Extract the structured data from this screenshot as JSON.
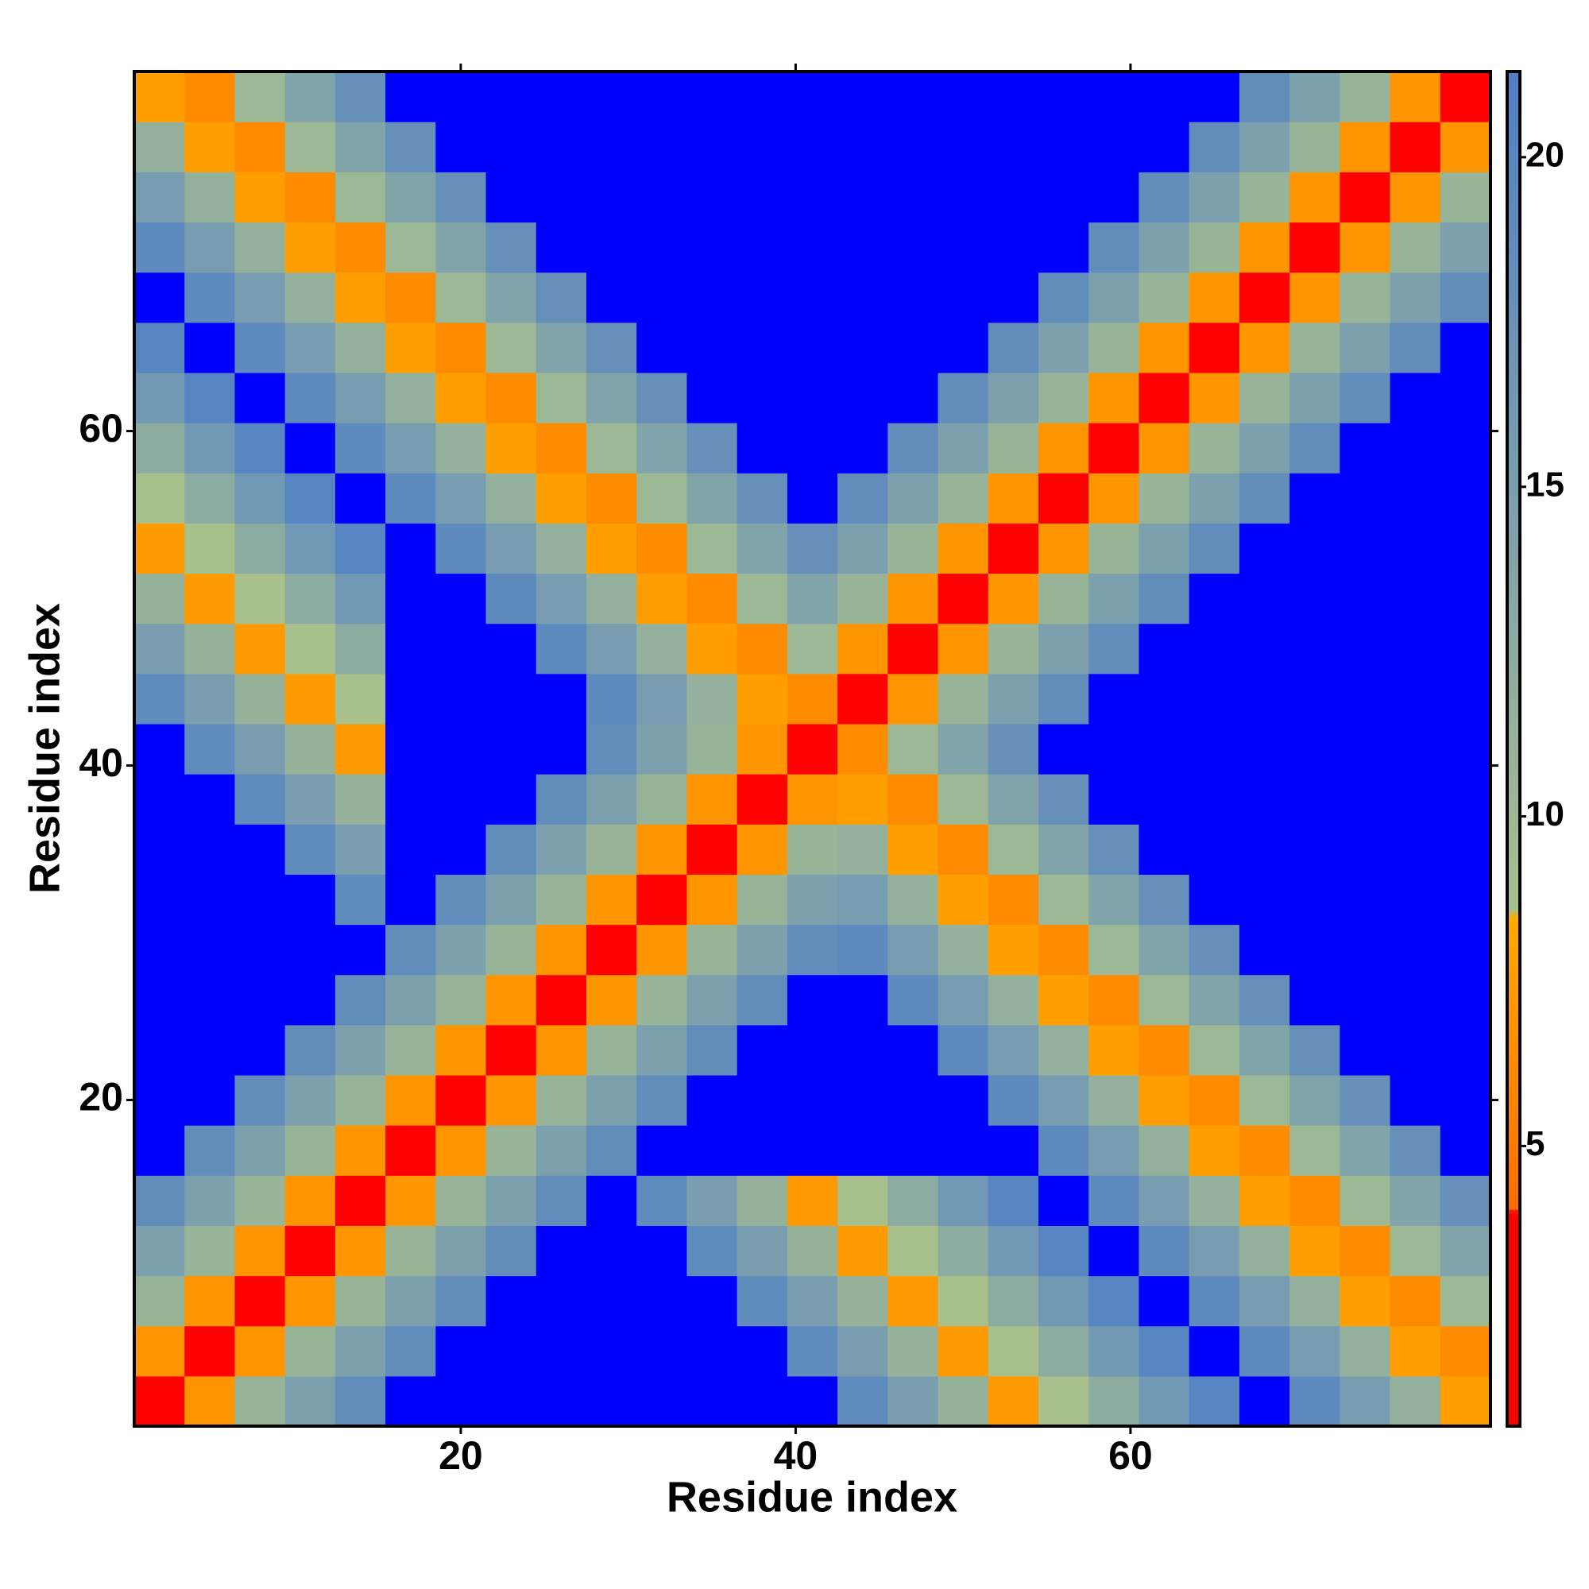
{
  "chart_data": {
    "type": "heatmap",
    "xlabel": "Residue index",
    "ylabel": "Residue index",
    "xbins": [
      0.5,
      3.5,
      6.5,
      9.5,
      12.5,
      15.5,
      18.5,
      21.5,
      24.5,
      27.5,
      30.5,
      33.5,
      36.5,
      39.5,
      42.5,
      45.5,
      48.5,
      51.5,
      54.5,
      57.5,
      60.5,
      63.5,
      66.5,
      69.5,
      72.5,
      75.5,
      78.5,
      81.5
    ],
    "ybins": [
      0.5,
      3.5,
      6.5,
      9.5,
      12.5,
      15.5,
      18.5,
      21.5,
      24.5,
      27.5,
      30.5,
      33.5,
      36.5,
      39.5,
      42.5,
      45.5,
      48.5,
      51.5,
      54.5,
      57.5,
      60.5,
      63.5,
      66.5,
      69.5,
      72.5,
      75.5,
      78.5,
      81.5
    ],
    "xlim": [
      0.5,
      81.5
    ],
    "ylim": [
      0.5,
      81.5
    ],
    "xticks": [
      20,
      40,
      60
    ],
    "yticks": [
      20,
      40,
      60
    ],
    "clim": [
      0.75,
      21.3
    ],
    "cticks": [
      5,
      10,
      15,
      20
    ],
    "values": [
      [
        3,
        6.9,
        10.8,
        14.7,
        18.6,
        22,
        22,
        22,
        22,
        22,
        22,
        22,
        22,
        22,
        19,
        15.1,
        11.2,
        7.3,
        8.6,
        12.5,
        16.4,
        20.3,
        22,
        19.3,
        15.4,
        11.5,
        7.6
      ],
      [
        6.9,
        3,
        6.9,
        10.8,
        14.7,
        18.6,
        22,
        22,
        22,
        22,
        22,
        22,
        22,
        19,
        15.1,
        11.2,
        7.3,
        8.6,
        12.5,
        16.4,
        20.3,
        22,
        19.3,
        15.4,
        11.5,
        7.6,
        6.3
      ],
      [
        10.8,
        6.9,
        3,
        6.9,
        10.8,
        14.7,
        18.6,
        22,
        22,
        22,
        22,
        22,
        19,
        15.1,
        11.2,
        7.3,
        8.6,
        12.5,
        16.4,
        20.3,
        22,
        19.3,
        15.4,
        11.5,
        7.6,
        6.3,
        10.2
      ],
      [
        14.7,
        10.8,
        6.9,
        3,
        6.9,
        10.8,
        14.7,
        18.6,
        22,
        22,
        22,
        19,
        15.1,
        11.2,
        7.3,
        8.6,
        12.5,
        16.4,
        20.3,
        22,
        19.3,
        15.4,
        11.5,
        7.6,
        6.3,
        10.2,
        14.1
      ],
      [
        18.6,
        14.7,
        10.8,
        6.9,
        3,
        6.9,
        10.8,
        14.7,
        18.6,
        22,
        19,
        15.1,
        11.2,
        7.3,
        8.6,
        12.5,
        16.4,
        20.3,
        22,
        19.3,
        15.4,
        11.5,
        7.6,
        6.3,
        10.2,
        14.1,
        18
      ],
      [
        22,
        18.6,
        14.7,
        10.8,
        6.9,
        3,
        6.9,
        10.8,
        14.7,
        18.6,
        22,
        22,
        22,
        22,
        22,
        22,
        22,
        22,
        19.3,
        15.4,
        11.5,
        7.6,
        6.3,
        10.2,
        14.1,
        18,
        21.9
      ],
      [
        22,
        22,
        18.6,
        14.7,
        10.8,
        6.9,
        3,
        6.9,
        10.8,
        14.7,
        18.6,
        22,
        22,
        22,
        22,
        22,
        22,
        19.3,
        15.4,
        11.5,
        7.6,
        6.3,
        10.2,
        14.1,
        18,
        21.9,
        22
      ],
      [
        22,
        22,
        22,
        18.6,
        14.7,
        10.8,
        6.9,
        3,
        6.9,
        10.8,
        14.7,
        18.6,
        22,
        22,
        22,
        22,
        19.3,
        15.4,
        11.5,
        7.6,
        6.3,
        10.2,
        14.1,
        18,
        21.9,
        22,
        22
      ],
      [
        22,
        22,
        22,
        22,
        18.6,
        14.7,
        10.8,
        6.9,
        3,
        6.9,
        10.8,
        14.7,
        18.6,
        22,
        22,
        19.3,
        15.4,
        11.5,
        7.6,
        6.3,
        10.2,
        14.1,
        18,
        21.9,
        22,
        22,
        22
      ],
      [
        22,
        22,
        22,
        22,
        22,
        18.6,
        14.7,
        10.8,
        6.9,
        3,
        6.9,
        10.8,
        14.7,
        18.6,
        19.3,
        15.4,
        11.5,
        7.6,
        6.3,
        10.2,
        14.1,
        18,
        21.9,
        22,
        22,
        22,
        22
      ],
      [
        22,
        22,
        22,
        22,
        19,
        22,
        18.6,
        14.7,
        10.8,
        6.9,
        3,
        6.9,
        10.8,
        14.7,
        15.4,
        11.5,
        7.6,
        6.3,
        10.2,
        14.1,
        18,
        21.9,
        22,
        22,
        22,
        22,
        22
      ],
      [
        22,
        22,
        22,
        19,
        15.1,
        22,
        22,
        18.6,
        14.7,
        10.8,
        6.9,
        3,
        6.9,
        10.8,
        11.5,
        7.6,
        6.3,
        10.2,
        14.1,
        18,
        21.9,
        22,
        22,
        22,
        22,
        22,
        22
      ],
      [
        22,
        22,
        19,
        15.1,
        11.2,
        22,
        22,
        22,
        18.6,
        14.7,
        10.8,
        6.9,
        3,
        6.9,
        7.6,
        6.3,
        10.2,
        14.1,
        18,
        21.9,
        22,
        22,
        22,
        22,
        22,
        22,
        22
      ],
      [
        22,
        19,
        15.1,
        11.2,
        7.3,
        22,
        22,
        22,
        22,
        18.6,
        14.7,
        10.8,
        6.9,
        3,
        6.3,
        10.2,
        14.1,
        18,
        21.9,
        22,
        22,
        22,
        22,
        22,
        22,
        22,
        22
      ],
      [
        19,
        15.1,
        11.2,
        7.3,
        8.6,
        22,
        22,
        22,
        22,
        19.3,
        15.4,
        11.5,
        7.6,
        6.3,
        3,
        6.9,
        10.8,
        14.7,
        18.6,
        22,
        22,
        22,
        22,
        22,
        22,
        22,
        22
      ],
      [
        15.1,
        11.2,
        7.3,
        8.6,
        12.5,
        22,
        22,
        22,
        19.3,
        15.4,
        11.5,
        7.6,
        6.3,
        10.2,
        6.9,
        3,
        6.9,
        10.8,
        14.7,
        18.6,
        22,
        22,
        22,
        22,
        22,
        22,
        22
      ],
      [
        11.2,
        7.3,
        8.6,
        12.5,
        16.4,
        22,
        22,
        19.3,
        15.4,
        11.5,
        7.6,
        6.3,
        10.2,
        14.1,
        10.8,
        6.9,
        3,
        6.9,
        10.8,
        14.7,
        18.6,
        22,
        22,
        22,
        22,
        22,
        22
      ],
      [
        7.3,
        8.6,
        12.5,
        16.4,
        20.3,
        22,
        19.3,
        15.4,
        11.5,
        7.6,
        6.3,
        10.2,
        14.1,
        18,
        14.7,
        10.8,
        6.9,
        3,
        6.9,
        10.8,
        14.7,
        18.6,
        22,
        22,
        22,
        22,
        22
      ],
      [
        8.6,
        12.5,
        16.4,
        20.3,
        22,
        19.3,
        15.4,
        11.5,
        7.6,
        6.3,
        10.2,
        14.1,
        18,
        21.9,
        18.6,
        14.7,
        10.8,
        6.9,
        3,
        6.9,
        10.8,
        14.7,
        18.6,
        22,
        22,
        22,
        22
      ],
      [
        12.5,
        16.4,
        20.3,
        22,
        19.3,
        15.4,
        11.5,
        7.6,
        6.3,
        10.2,
        14.1,
        18,
        21.9,
        22,
        22,
        18.6,
        14.7,
        10.8,
        6.9,
        3,
        6.9,
        10.8,
        14.7,
        18.6,
        22,
        22,
        22
      ],
      [
        16.4,
        20.3,
        22,
        19.3,
        15.4,
        11.5,
        7.6,
        6.3,
        10.2,
        14.1,
        18,
        21.9,
        22,
        22,
        22,
        22,
        18.6,
        14.7,
        10.8,
        6.9,
        3,
        6.9,
        10.8,
        14.7,
        18.6,
        22,
        22
      ],
      [
        20.3,
        22,
        19.3,
        15.4,
        11.5,
        7.6,
        6.3,
        10.2,
        14.1,
        18,
        21.9,
        22,
        22,
        22,
        22,
        22,
        22,
        18.6,
        14.7,
        10.8,
        6.9,
        3,
        6.9,
        10.8,
        14.7,
        18.6,
        22
      ],
      [
        22,
        19.3,
        15.4,
        11.5,
        7.6,
        6.3,
        10.2,
        14.1,
        18,
        21.9,
        22,
        22,
        22,
        22,
        22,
        22,
        22,
        22,
        18.6,
        14.7,
        10.8,
        6.9,
        3,
        6.9,
        10.8,
        14.7,
        18.6
      ],
      [
        19.3,
        15.4,
        11.5,
        7.6,
        6.3,
        10.2,
        14.1,
        18,
        21.9,
        22,
        22,
        22,
        22,
        22,
        22,
        22,
        22,
        22,
        22,
        18.6,
        14.7,
        10.8,
        6.9,
        3,
        6.9,
        10.8,
        14.7
      ],
      [
        15.4,
        11.5,
        7.6,
        6.3,
        10.2,
        14.1,
        18,
        21.9,
        22,
        22,
        22,
        22,
        22,
        22,
        22,
        22,
        22,
        22,
        22,
        22,
        18.6,
        14.7,
        10.8,
        6.9,
        3,
        6.9,
        10.8
      ],
      [
        11.5,
        7.6,
        6.3,
        10.2,
        14.1,
        18,
        21.9,
        22,
        22,
        22,
        22,
        22,
        22,
        22,
        22,
        22,
        22,
        22,
        22,
        22,
        22,
        18.6,
        14.7,
        10.8,
        6.9,
        3,
        6.9
      ],
      [
        7.6,
        6.3,
        10.2,
        14.1,
        18,
        21.9,
        22,
        22,
        22,
        22,
        22,
        22,
        22,
        22,
        22,
        22,
        22,
        22,
        22,
        22,
        22,
        22,
        18.6,
        14.7,
        10.8,
        6.9,
        3
      ]
    ]
  }
}
